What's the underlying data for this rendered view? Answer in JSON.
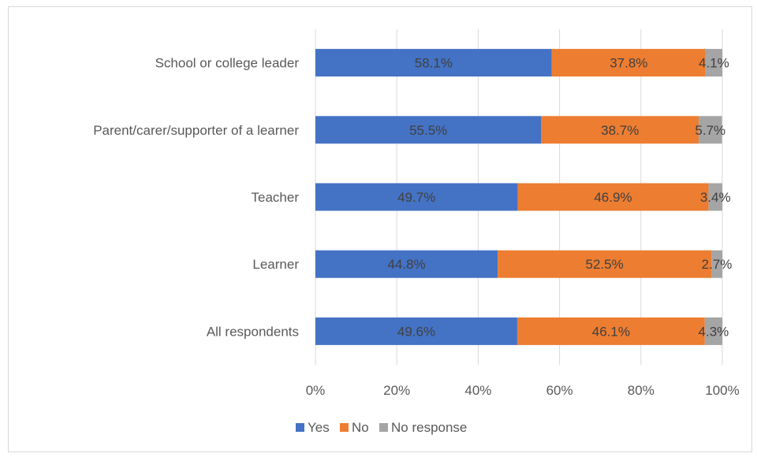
{
  "chart_data": {
    "type": "bar",
    "orientation": "horizontal",
    "stacked": true,
    "categories": [
      "School or college leader",
      "Parent/carer/supporter of a learner",
      "Teacher",
      "Learner",
      "All respondents"
    ],
    "series": [
      {
        "name": "Yes",
        "values": [
          58.1,
          55.5,
          49.7,
          44.8,
          49.6
        ],
        "labels": [
          "58.1%",
          "55.5%",
          "49.7%",
          "44.8%",
          "49.6%"
        ]
      },
      {
        "name": "No",
        "values": [
          37.8,
          38.7,
          46.9,
          52.5,
          46.1
        ],
        "labels": [
          "37.8%",
          "38.7%",
          "46.9%",
          "52.5%",
          "46.1%"
        ]
      },
      {
        "name": "No response",
        "values": [
          4.1,
          5.7,
          3.4,
          2.7,
          4.3
        ],
        "labels": [
          "4.1%",
          "5.7%",
          "3.4%",
          "2.7%",
          "4.3%"
        ]
      }
    ],
    "xlim": [
      0,
      100
    ],
    "x_ticks": [
      "0%",
      "20%",
      "40%",
      "60%",
      "80%",
      "100%"
    ],
    "x_tick_values": [
      0,
      20,
      40,
      60,
      80,
      100
    ],
    "grid": true,
    "legend_position": "bottom",
    "title": "",
    "xlabel": "",
    "ylabel": ""
  },
  "colors": {
    "series": [
      "#4472c4",
      "#ed7d31",
      "#a5a5a5"
    ],
    "gridline": "#d9d9d9",
    "text": "#595959",
    "data_label": "#404040"
  }
}
